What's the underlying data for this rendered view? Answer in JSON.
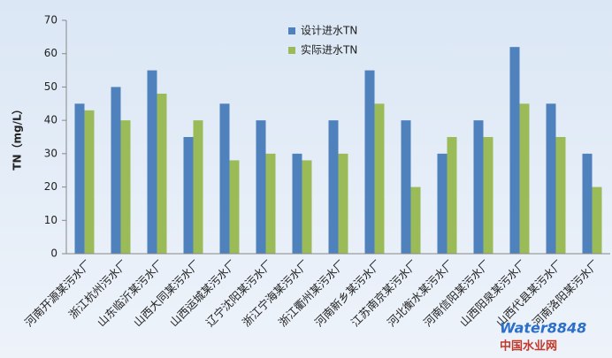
{
  "chart_data": {
    "type": "bar",
    "y_label": "TN（mg/L）",
    "categories": [
      "河南开源某污水厂",
      "浙江杭州污水厂",
      "山东临沂某污水厂",
      "山西大同某污水厂",
      "山西运城某污水厂",
      "辽宁沈阳某污水厂",
      "浙江宁海某污水厂",
      "浙江衢州某污水厂",
      "河南新乡某污水厂",
      "江苏南京某污水厂",
      "河北衡水某污水厂",
      "河南信阳某污水厂",
      "山西阳泉某污水厂",
      "山西代县某污水厂",
      "河南洛阳某污水厂"
    ],
    "series": [
      {
        "name": "设计进水TN",
        "color": "#4f81bd",
        "values": [
          45,
          50,
          55,
          35,
          45,
          40,
          30,
          40,
          55,
          40,
          30,
          40,
          62,
          45,
          30
        ]
      },
      {
        "name": "实际进水TN",
        "color": "#9bbb59",
        "values": [
          43,
          40,
          48,
          40,
          28,
          30,
          28,
          30,
          45,
          20,
          35,
          35,
          45,
          35,
          20
        ]
      }
    ],
    "ylim": [
      0,
      70
    ],
    "yticks": [
      0,
      10,
      20,
      30,
      40,
      50,
      60,
      70
    ],
    "grid": false,
    "watermark": [
      "Water8848",
      "中国水业网"
    ]
  }
}
